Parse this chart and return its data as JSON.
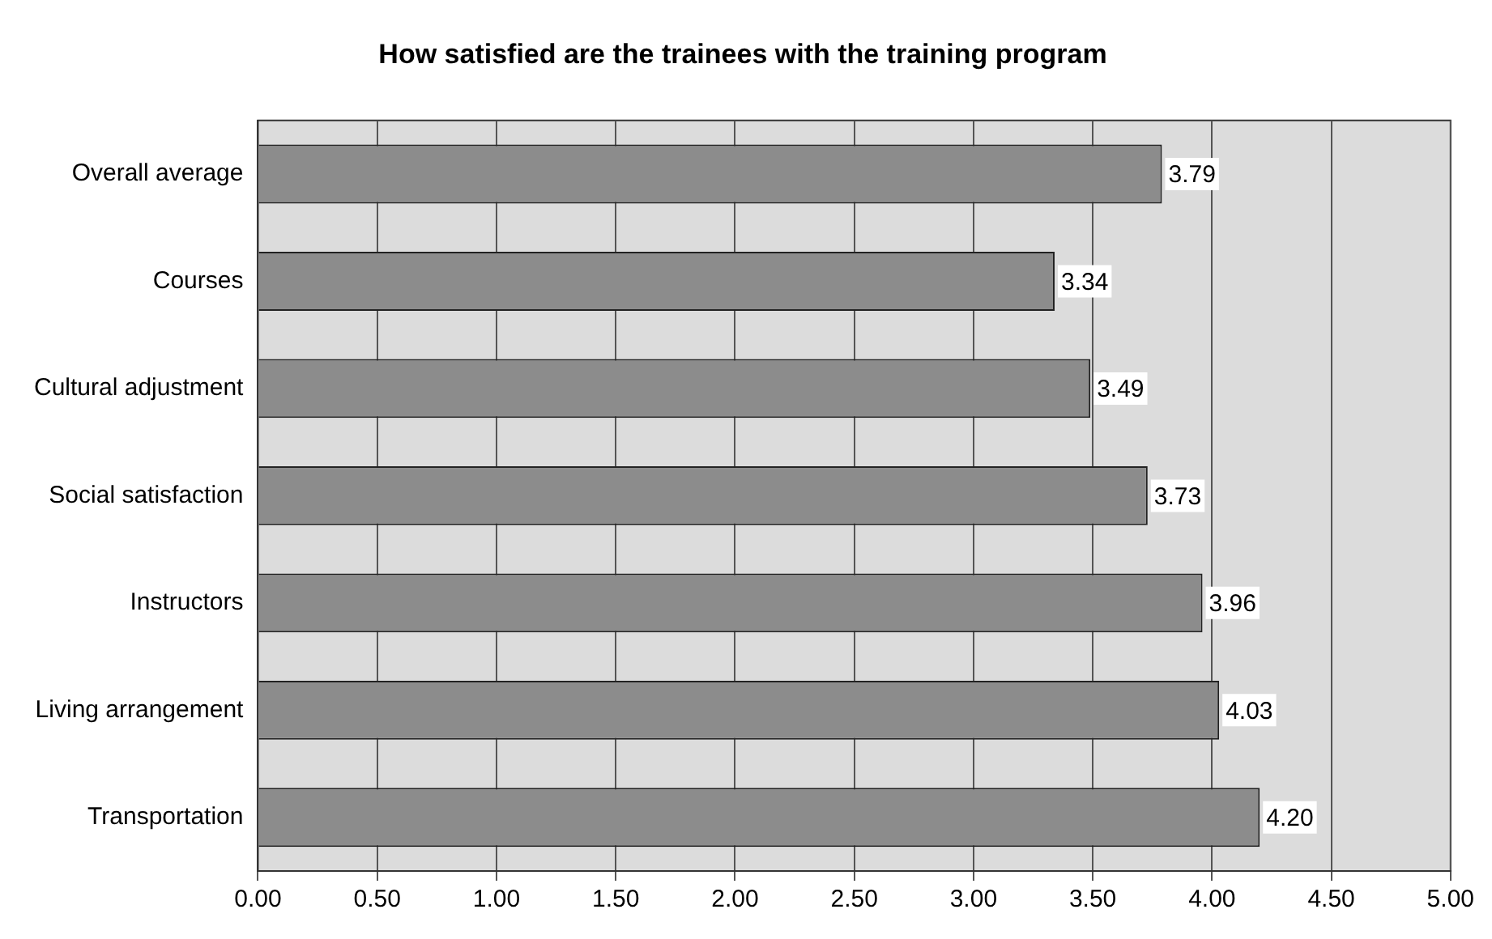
{
  "chart_data": {
    "type": "bar",
    "orientation": "horizontal",
    "title": "How satisfied are the trainees with the training program",
    "categories": [
      "Overall average",
      "Courses",
      "Cultural adjustment",
      "Social satisfaction",
      "Instructors",
      "Living arrangement",
      "Transportation"
    ],
    "values": [
      3.79,
      3.34,
      3.49,
      3.73,
      3.96,
      4.03,
      4.2
    ],
    "value_labels": [
      "3.79",
      "3.34",
      "3.49",
      "3.73",
      "3.96",
      "4.03",
      "4.20"
    ],
    "color": "#8c8c8c",
    "xlim": [
      0,
      5
    ],
    "xticks": [
      {
        "value": 0,
        "label": "0.00"
      },
      {
        "value": 0.5,
        "label": "0.50"
      },
      {
        "value": 1,
        "label": "1.00"
      },
      {
        "value": 1.5,
        "label": "1.50"
      },
      {
        "value": 2,
        "label": "2.00"
      },
      {
        "value": 2.5,
        "label": "2.50"
      },
      {
        "value": 3,
        "label": "3.00"
      },
      {
        "value": 3.5,
        "label": "3.50"
      },
      {
        "value": 4,
        "label": "4.00"
      },
      {
        "value": 4.5,
        "label": "4.50"
      },
      {
        "value": 5,
        "label": "5.00"
      }
    ],
    "grid": "x",
    "legend": false
  }
}
